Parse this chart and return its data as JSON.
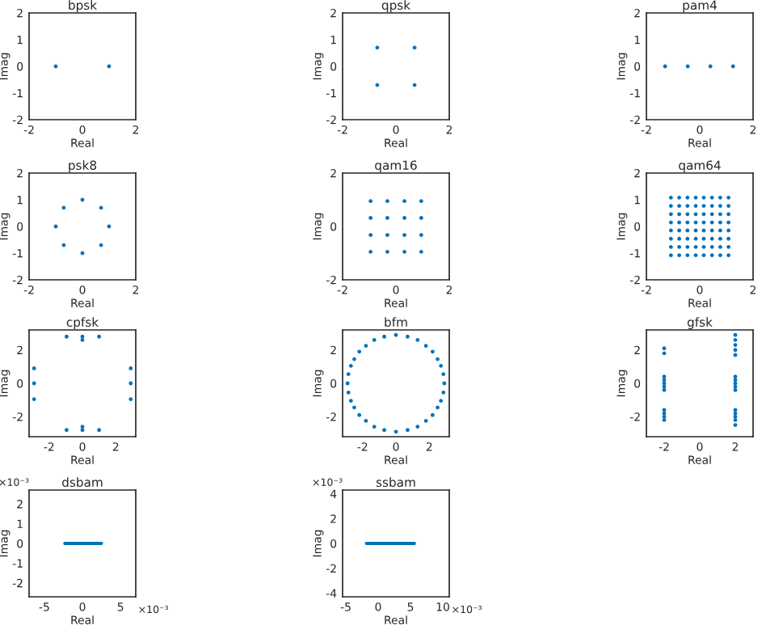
{
  "chart_data": [
    {
      "type": "scatter",
      "title": "bpsk",
      "xlabel": "Real",
      "ylabel": "Imag",
      "xlim": [
        -2,
        2
      ],
      "ylim": [
        -2,
        2
      ],
      "xticks": [
        -2,
        0,
        2
      ],
      "yticks": [
        -2,
        -1,
        0,
        1,
        2
      ],
      "marker": "circle",
      "grid": false,
      "series": [
        {
          "color": "#0072bd",
          "x": [
            -1,
            1
          ],
          "values": [
            0,
            0
          ]
        }
      ]
    },
    {
      "type": "scatter",
      "title": "qpsk",
      "xlabel": "Real",
      "ylabel": "Imag",
      "xlim": [
        -2,
        2
      ],
      "ylim": [
        -2,
        2
      ],
      "xticks": [
        -2,
        0,
        2
      ],
      "yticks": [
        -2,
        -1,
        0,
        1,
        2
      ],
      "marker": "circle",
      "grid": false,
      "series": [
        {
          "color": "#0072bd",
          "x": [
            -0.7,
            0.7,
            -0.7,
            0.7
          ],
          "values": [
            0.7,
            0.7,
            -0.7,
            -0.7
          ]
        }
      ]
    },
    {
      "type": "scatter",
      "title": "pam4",
      "xlabel": "Real",
      "ylabel": "Imag",
      "xlim": [
        -2,
        2
      ],
      "ylim": [
        -2,
        2
      ],
      "xticks": [
        -2,
        0,
        2
      ],
      "yticks": [
        -2,
        -1,
        0,
        1,
        2
      ],
      "marker": "circle",
      "grid": false,
      "series": [
        {
          "color": "#0072bd",
          "x": [
            -1.3,
            -0.45,
            0.4,
            1.25
          ],
          "values": [
            0,
            0,
            0,
            0
          ]
        }
      ]
    },
    {
      "type": "scatter",
      "title": "psk8",
      "xlabel": "Real",
      "ylabel": "Imag",
      "xlim": [
        -2,
        2
      ],
      "ylim": [
        -2,
        2
      ],
      "xticks": [
        -2,
        0,
        2
      ],
      "yticks": [
        -2,
        -1,
        0,
        1,
        2
      ],
      "marker": "circle",
      "grid": false,
      "series": [
        {
          "color": "#0072bd",
          "x": [
            1,
            0.7,
            0,
            -0.7,
            -1,
            -0.7,
            0,
            0.7
          ],
          "values": [
            0,
            0.7,
            1,
            0.7,
            0,
            -0.7,
            -1,
            -0.7
          ]
        }
      ]
    },
    {
      "type": "scatter",
      "title": "qam16",
      "xlabel": "Real",
      "ylabel": "Imag",
      "xlim": [
        -2,
        2
      ],
      "ylim": [
        -2,
        2
      ],
      "xticks": [
        -2,
        0,
        2
      ],
      "yticks": [
        -2,
        0,
        2
      ],
      "marker": "circle",
      "grid": false,
      "series": [
        {
          "color": "#0072bd",
          "x": [
            -0.95,
            -0.32,
            0.32,
            0.95,
            -0.95,
            -0.32,
            0.32,
            0.95,
            -0.95,
            -0.32,
            0.32,
            0.95,
            -0.95,
            -0.32,
            0.32,
            0.95
          ],
          "values": [
            0.95,
            0.95,
            0.95,
            0.95,
            0.32,
            0.32,
            0.32,
            0.32,
            -0.32,
            -0.32,
            -0.32,
            -0.32,
            -0.95,
            -0.95,
            -0.95,
            -0.95
          ]
        }
      ]
    },
    {
      "type": "scatter",
      "title": "qam64",
      "xlabel": "Real",
      "ylabel": "Imag",
      "xlim": [
        -2,
        2
      ],
      "ylim": [
        -2,
        2
      ],
      "xticks": [
        -2,
        0,
        2
      ],
      "yticks": [
        -2,
        -1,
        0,
        1,
        2
      ],
      "marker": "circle",
      "grid": false,
      "series": [
        {
          "color": "#0072bd",
          "x": [
            -1.08,
            -0.77,
            -0.46,
            -0.15,
            0.15,
            0.46,
            0.77,
            1.08,
            -1.08,
            -0.77,
            -0.46,
            -0.15,
            0.15,
            0.46,
            0.77,
            1.08,
            -1.08,
            -0.77,
            -0.46,
            -0.15,
            0.15,
            0.46,
            0.77,
            1.08,
            -1.08,
            -0.77,
            -0.46,
            -0.15,
            0.15,
            0.46,
            0.77,
            1.08,
            -1.08,
            -0.77,
            -0.46,
            -0.15,
            0.15,
            0.46,
            0.77,
            1.08,
            -1.08,
            -0.77,
            -0.46,
            -0.15,
            0.15,
            0.46,
            0.77,
            1.08,
            -1.08,
            -0.77,
            -0.46,
            -0.15,
            0.15,
            0.46,
            0.77,
            1.08,
            -1.08,
            -0.77,
            -0.46,
            -0.15,
            0.15,
            0.46,
            0.77,
            1.08
          ],
          "values": [
            1.08,
            1.08,
            1.08,
            1.08,
            1.08,
            1.08,
            1.08,
            1.08,
            0.77,
            0.77,
            0.77,
            0.77,
            0.77,
            0.77,
            0.77,
            0.77,
            0.46,
            0.46,
            0.46,
            0.46,
            0.46,
            0.46,
            0.46,
            0.46,
            0.15,
            0.15,
            0.15,
            0.15,
            0.15,
            0.15,
            0.15,
            0.15,
            -0.15,
            -0.15,
            -0.15,
            -0.15,
            -0.15,
            -0.15,
            -0.15,
            -0.15,
            -0.46,
            -0.46,
            -0.46,
            -0.46,
            -0.46,
            -0.46,
            -0.46,
            -0.46,
            -0.77,
            -0.77,
            -0.77,
            -0.77,
            -0.77,
            -0.77,
            -0.77,
            -0.77,
            -1.08,
            -1.08,
            -1.08,
            -1.08,
            -1.08,
            -1.08,
            -1.08,
            -1.08
          ]
        }
      ]
    },
    {
      "type": "scatter",
      "title": "cpfsk",
      "xlabel": "Real",
      "ylabel": "Imag",
      "xlim": [
        -3.2,
        3.2
      ],
      "ylim": [
        -3.2,
        3.2
      ],
      "xticks": [
        -2,
        0,
        2
      ],
      "yticks": [
        -2,
        0,
        2
      ],
      "marker": "circle",
      "grid": false,
      "series": [
        {
          "color": "#0072bd",
          "x": [
            -0.95,
            0,
            1,
            0,
            -0.95,
            0,
            1,
            0,
            -2.9,
            -2.9,
            -2.9,
            2.9,
            2.9,
            2.9
          ],
          "values": [
            2.8,
            2.8,
            2.8,
            2.6,
            -2.8,
            -2.8,
            -2.8,
            -2.6,
            0.9,
            0,
            -0.95,
            0.9,
            0,
            -0.95
          ]
        }
      ]
    },
    {
      "type": "scatter",
      "title": "bfm",
      "xlabel": "Real",
      "ylabel": "Imag",
      "xlim": [
        -3.2,
        3.2
      ],
      "ylim": [
        -3.2,
        3.2
      ],
      "xticks": [
        -2,
        0,
        2
      ],
      "yticks": [
        -2,
        0,
        2
      ],
      "marker": "circle",
      "grid": false,
      "series": [
        {
          "color": "#0072bd",
          "x": [
            2.9,
            2.85,
            2.7,
            2.5,
            2.2,
            1.8,
            1.3,
            0.7,
            0,
            -0.7,
            -1.3,
            -1.8,
            -2.2,
            -2.5,
            -2.7,
            -2.85,
            -2.9,
            -2.85,
            -2.7,
            -2.5,
            -2.2,
            -1.8,
            -1.3,
            -0.7,
            0,
            0.7,
            1.3,
            1.8,
            2.2,
            2.5,
            2.7,
            2.85
          ],
          "values": [
            0,
            0.55,
            1.05,
            1.45,
            1.9,
            2.25,
            2.6,
            2.8,
            2.9,
            2.8,
            2.6,
            2.25,
            1.9,
            1.45,
            1.05,
            0.55,
            0,
            -0.55,
            -1.05,
            -1.45,
            -1.9,
            -2.25,
            -2.6,
            -2.8,
            -2.9,
            -2.8,
            -2.6,
            -2.25,
            -1.9,
            -1.45,
            -1.05,
            -0.55
          ]
        }
      ]
    },
    {
      "type": "scatter",
      "title": "gfsk",
      "xlabel": "Real",
      "ylabel": "Imag",
      "xlim": [
        -3,
        3
      ],
      "ylim": [
        -3.2,
        3.2
      ],
      "xticks": [
        -2,
        0,
        2
      ],
      "yticks": [
        -2,
        0,
        2
      ],
      "marker": "circle",
      "grid": false,
      "series": [
        {
          "color": "#0072bd",
          "x": [
            -2,
            -2,
            -2,
            -2,
            -2,
            -2,
            -2,
            -2,
            -2,
            -2,
            -2,
            2,
            2,
            2,
            2,
            2,
            2,
            2,
            2,
            2,
            2,
            2,
            2,
            2,
            2,
            2
          ],
          "values": [
            2.1,
            1.8,
            0.4,
            0.2,
            0,
            -0.2,
            -0.4,
            -1.6,
            -1.8,
            -2,
            -2.2,
            2.6,
            2.3,
            2,
            1.7,
            0.4,
            0.2,
            0,
            -0.2,
            -0.4,
            -1.6,
            -1.8,
            -2,
            -2.2,
            -2.5,
            2.9
          ]
        }
      ]
    },
    {
      "type": "line",
      "title": "dsbam",
      "xlabel": "Real",
      "ylabel": "Imag",
      "xlim": [
        -7,
        7
      ],
      "ylim": [
        -2.7,
        2.7
      ],
      "xticks": [
        -5,
        0,
        5
      ],
      "yticks": [
        -2,
        -1,
        0,
        1,
        2
      ],
      "grid": false,
      "annotations": [
        "×10⁻³",
        "×10⁻³"
      ],
      "series": [
        {
          "color": "#0072bd",
          "x": [
            -2.3,
            2.5
          ],
          "values": [
            0,
            0
          ]
        }
      ]
    },
    {
      "type": "line",
      "title": "ssbam",
      "xlabel": "Real",
      "ylabel": "Imag",
      "xlim": [
        -5.5,
        11
      ],
      "ylim": [
        -4.3,
        4.3
      ],
      "xticks": [
        -5,
        0,
        5,
        10
      ],
      "yticks": [
        -4,
        -2,
        0,
        2,
        4
      ],
      "grid": false,
      "annotations": [
        "×10⁻³",
        "×10⁻³"
      ],
      "series": [
        {
          "color": "#0072bd",
          "x": [
            -1.8,
            5.6
          ],
          "values": [
            0,
            0
          ]
        }
      ]
    }
  ]
}
